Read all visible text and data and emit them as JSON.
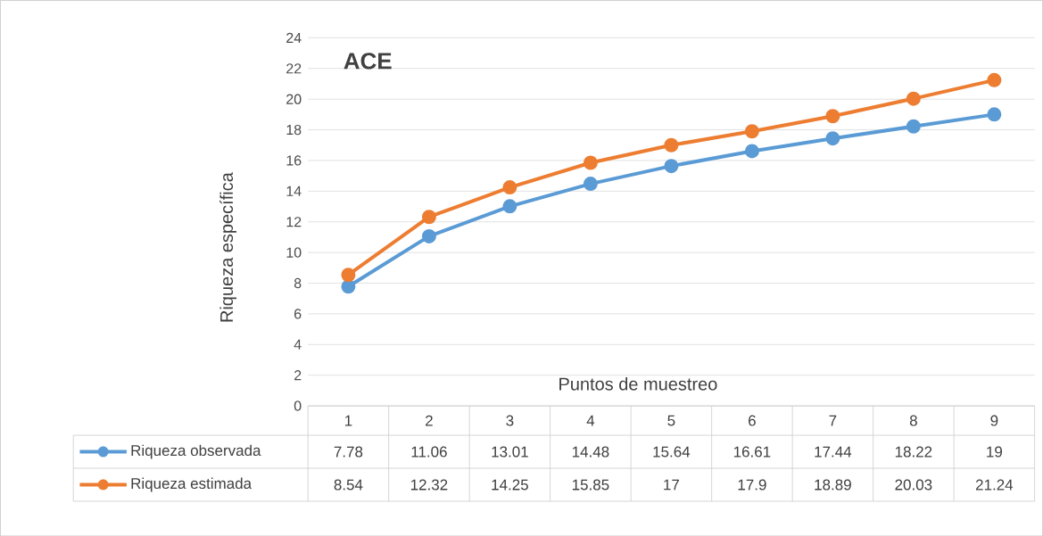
{
  "chart_data": {
    "type": "line",
    "title": "ACE",
    "xlabel": "Puntos de muestreo",
    "ylabel": "Riqueza específica",
    "categories": [
      "1",
      "2",
      "3",
      "4",
      "5",
      "6",
      "7",
      "8",
      "9"
    ],
    "series": [
      {
        "name": "Riqueza observada",
        "color": "#5b9bd5",
        "values": [
          7.78,
          11.06,
          13.01,
          14.48,
          15.64,
          16.61,
          17.44,
          18.22,
          19
        ]
      },
      {
        "name": "Riqueza estimada",
        "color": "#ed7d31",
        "values": [
          8.54,
          12.32,
          14.25,
          15.85,
          17,
          17.9,
          18.89,
          20.03,
          21.24
        ]
      }
    ],
    "ylim": [
      0,
      24
    ],
    "yticks": [
      0,
      2,
      4,
      6,
      8,
      10,
      12,
      14,
      16,
      18,
      20,
      22,
      24
    ],
    "grid": "y",
    "legend": "bottom",
    "marker": "circle",
    "line_style": "solid",
    "data_labels": true
  }
}
